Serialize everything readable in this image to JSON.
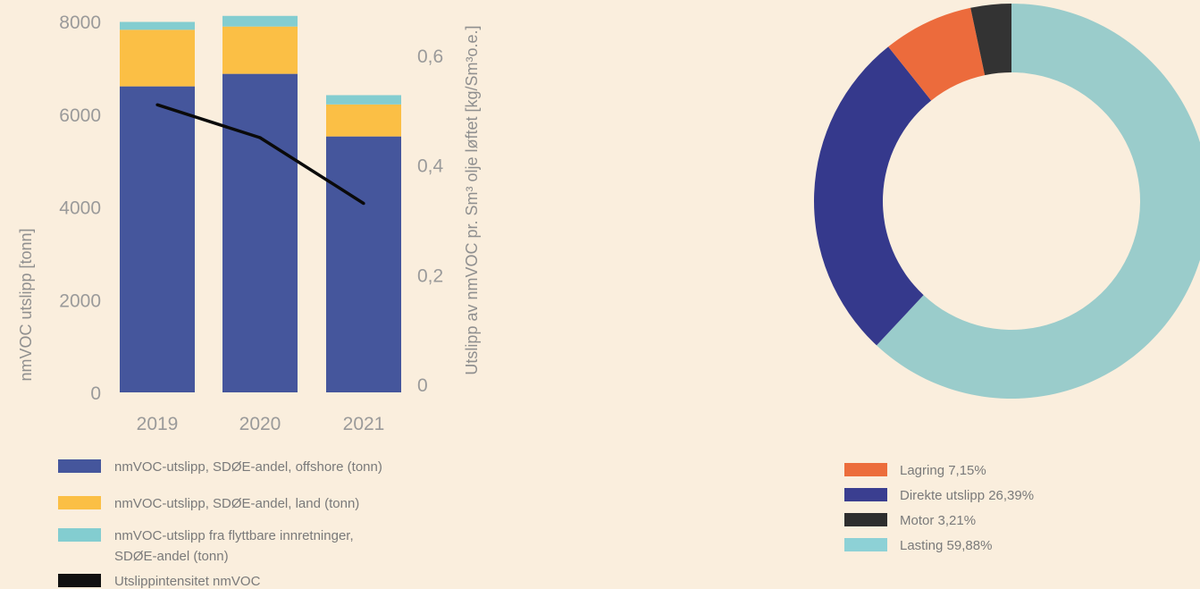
{
  "chart_data": [
    {
      "type": "bar",
      "stacked": true,
      "categories": [
        "2019",
        "2020",
        "2021"
      ],
      "series": [
        {
          "name": "nmVOC-utslipp, SDØE-andel, offshore (tonn)",
          "values": [
            6600,
            6870,
            5520
          ],
          "color": "#45569c",
          "axis": "left"
        },
        {
          "name": "nmVOC-utslipp, SDØE-andel, land (tonn)",
          "values": [
            1220,
            1020,
            690
          ],
          "color": "#fbbf45",
          "axis": "left"
        },
        {
          "name_lines": [
            "nmVOC-utslipp fra flyttbare innretninger,",
            "SDØE-andel (tonn)"
          ],
          "values": [
            170,
            230,
            200
          ],
          "color": "#83cdd0",
          "axis": "left"
        },
        {
          "name": "Utslippintensitet nmVOC",
          "type": "line",
          "values": [
            0.51,
            0.45,
            0.33
          ],
          "color": "#0a0a0a",
          "legend_color": "#111111",
          "axis": "right"
        }
      ],
      "ylabel": "nmVOC utslipp [tonn]",
      "ylim": [
        0,
        8000
      ],
      "yticks": [
        0,
        2000,
        4000,
        6000,
        8000
      ],
      "ytick_labels": [
        "0",
        "2000",
        "4000",
        "6000",
        "8000"
      ],
      "y2label": "Utslipp av nmVOC pr. Sm³  olje løftet [kg/Sm³o.e.]",
      "y2lim": [
        0,
        0.6
      ],
      "y2ticks": [
        0,
        0.2,
        0.4,
        0.6
      ],
      "y2tick_labels": [
        "0",
        "0,2",
        "0,4",
        "0,6"
      ],
      "grid": false,
      "legend_position": "bottom"
    },
    {
      "type": "pie",
      "donut": true,
      "slices": [
        {
          "label": "Lasting 59,88%",
          "value": 59.88,
          "color": "#9acccb",
          "legend_color": "#8dd1d6"
        },
        {
          "label": "Direkte utslipp 26,39%",
          "value": 26.39,
          "color": "#35398c",
          "legend_color": "#3a3e90"
        },
        {
          "label": "Lagring 7,15%",
          "value": 7.15,
          "color": "#ec6b3c",
          "legend_color": "#ec6d3c"
        },
        {
          "label": "Motor 3,21%",
          "value": 3.21,
          "color": "#333333",
          "legend_color": "#2e2e2e"
        }
      ],
      "legend_order": [
        "Lagring 7,15%",
        "Direkte utslipp 26,39%",
        "Motor 3,21%",
        "Lasting 59,88%"
      ],
      "legend_position": "bottom"
    }
  ]
}
